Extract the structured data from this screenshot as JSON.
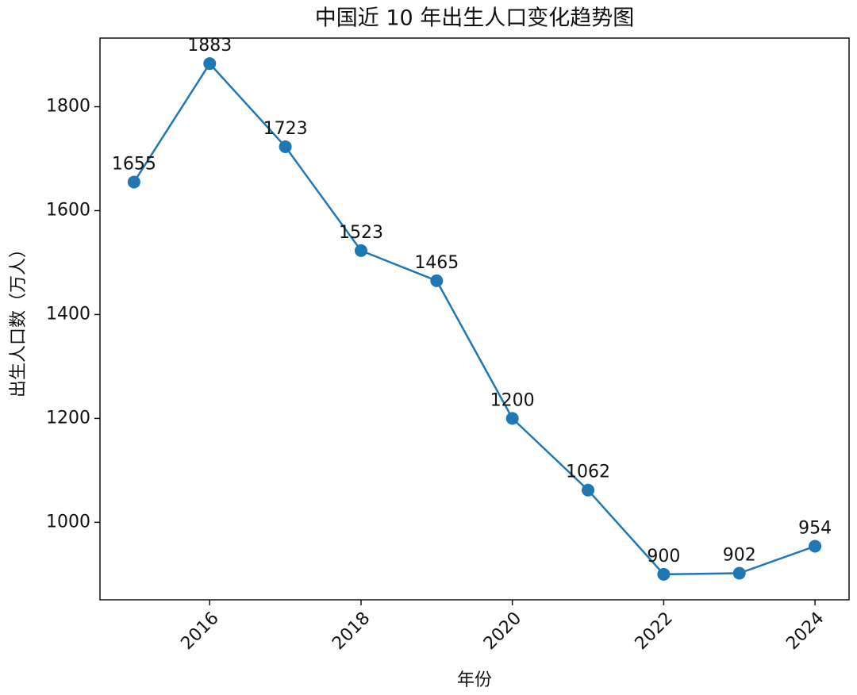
{
  "chart_data": {
    "type": "line",
    "title": "中国近 10 年出生人口变化趋势图",
    "xlabel": "年份",
    "ylabel": "出生人口数（万人）",
    "x": [
      2015,
      2016,
      2017,
      2018,
      2019,
      2020,
      2021,
      2022,
      2023,
      2024
    ],
    "values": [
      1655,
      1883,
      1723,
      1523,
      1465,
      1200,
      1062,
      900,
      902,
      954
    ],
    "color": "#1f77b4",
    "xlim": [
      2014.55,
      2024.45
    ],
    "xticks": [
      2016,
      2018,
      2020,
      2022,
      2024
    ],
    "ylim": [
      850.85,
      1932.15
    ],
    "yticks": [
      1000,
      1200,
      1400,
      1600,
      1800
    ],
    "grid": false
  }
}
